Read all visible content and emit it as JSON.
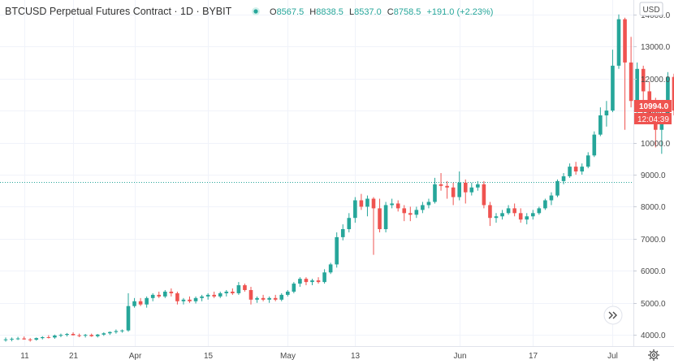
{
  "header": {
    "symbol_title": "BTCUSD Perpetual Futures Contract · 1D · BYBIT",
    "ohlc": [
      {
        "k": "O",
        "v": "8567.5"
      },
      {
        "k": "H",
        "v": "8838.5"
      },
      {
        "k": "L",
        "v": "8537.0"
      },
      {
        "k": "C",
        "v": "8758.5"
      }
    ],
    "change": "+191.0 (+2.23%)"
  },
  "price_axis": {
    "currency": "USD",
    "current_price": "10994.0",
    "countdown": "12:04:39"
  },
  "colors": {
    "up": "#26a69a",
    "down": "#ef5350",
    "grid": "#f0f3fa",
    "axis_text": "#4a4a4a",
    "price_line": "#26a69a"
  },
  "icons": {
    "status": "status-dot-icon",
    "scroll": "double-chevron-right-icon",
    "settings": "gear-icon"
  },
  "chart_data": {
    "type": "candlestick",
    "x_tick_labels": [
      "11",
      "21",
      "Apr",
      "15",
      "May",
      "13",
      "Jun",
      "17",
      "Jul"
    ],
    "y_ticks": [
      4000,
      5000,
      6000,
      7000,
      8000,
      9000,
      10000,
      11000,
      12000,
      13000,
      14000
    ],
    "ylim": [
      3650,
      14450
    ],
    "horizontal_line": 8758.5,
    "last_price": 10994.0,
    "candles": [
      {
        "o": 3850,
        "h": 3920,
        "l": 3790,
        "c": 3860
      },
      {
        "o": 3860,
        "h": 3920,
        "l": 3800,
        "c": 3880
      },
      {
        "o": 3880,
        "h": 3940,
        "l": 3840,
        "c": 3890
      },
      {
        "o": 3890,
        "h": 3950,
        "l": 3850,
        "c": 3860
      },
      {
        "o": 3860,
        "h": 3900,
        "l": 3790,
        "c": 3850
      },
      {
        "o": 3850,
        "h": 3920,
        "l": 3820,
        "c": 3900
      },
      {
        "o": 3900,
        "h": 3960,
        "l": 3860,
        "c": 3930
      },
      {
        "o": 3930,
        "h": 3990,
        "l": 3890,
        "c": 3920
      },
      {
        "o": 3920,
        "h": 4010,
        "l": 3880,
        "c": 3980
      },
      {
        "o": 3980,
        "h": 4040,
        "l": 3930,
        "c": 4000
      },
      {
        "o": 4000,
        "h": 4060,
        "l": 3950,
        "c": 4030
      },
      {
        "o": 4030,
        "h": 4080,
        "l": 3980,
        "c": 3990
      },
      {
        "o": 3990,
        "h": 4040,
        "l": 3930,
        "c": 3980
      },
      {
        "o": 3980,
        "h": 4030,
        "l": 3920,
        "c": 4000
      },
      {
        "o": 4000,
        "h": 4040,
        "l": 3940,
        "c": 3960
      },
      {
        "o": 3960,
        "h": 4030,
        "l": 3920,
        "c": 4010
      },
      {
        "o": 4010,
        "h": 4080,
        "l": 3970,
        "c": 4050
      },
      {
        "o": 4050,
        "h": 4110,
        "l": 4000,
        "c": 4090
      },
      {
        "o": 4090,
        "h": 4170,
        "l": 4040,
        "c": 4120
      },
      {
        "o": 4120,
        "h": 4170,
        "l": 4070,
        "c": 4140
      },
      {
        "o": 4140,
        "h": 5300,
        "l": 4100,
        "c": 4900
      },
      {
        "o": 4900,
        "h": 5150,
        "l": 4850,
        "c": 5050
      },
      {
        "o": 5050,
        "h": 5150,
        "l": 4900,
        "c": 4950
      },
      {
        "o": 4950,
        "h": 5200,
        "l": 4850,
        "c": 5150
      },
      {
        "o": 5150,
        "h": 5300,
        "l": 5050,
        "c": 5250
      },
      {
        "o": 5250,
        "h": 5350,
        "l": 5150,
        "c": 5200
      },
      {
        "o": 5200,
        "h": 5400,
        "l": 5150,
        "c": 5350
      },
      {
        "o": 5350,
        "h": 5450,
        "l": 5200,
        "c": 5300
      },
      {
        "o": 5300,
        "h": 5350,
        "l": 4950,
        "c": 5050
      },
      {
        "o": 5050,
        "h": 5150,
        "l": 4950,
        "c": 5100
      },
      {
        "o": 5100,
        "h": 5200,
        "l": 5000,
        "c": 5050
      },
      {
        "o": 5050,
        "h": 5200,
        "l": 4980,
        "c": 5150
      },
      {
        "o": 5150,
        "h": 5250,
        "l": 5050,
        "c": 5200
      },
      {
        "o": 5200,
        "h": 5300,
        "l": 5100,
        "c": 5250
      },
      {
        "o": 5250,
        "h": 5350,
        "l": 5150,
        "c": 5200
      },
      {
        "o": 5200,
        "h": 5350,
        "l": 5150,
        "c": 5300
      },
      {
        "o": 5300,
        "h": 5400,
        "l": 5200,
        "c": 5350
      },
      {
        "o": 5350,
        "h": 5450,
        "l": 5250,
        "c": 5300
      },
      {
        "o": 5300,
        "h": 5650,
        "l": 5250,
        "c": 5550
      },
      {
        "o": 5550,
        "h": 5600,
        "l": 5350,
        "c": 5400
      },
      {
        "o": 5400,
        "h": 5500,
        "l": 4950,
        "c": 5100
      },
      {
        "o": 5100,
        "h": 5200,
        "l": 5000,
        "c": 5150
      },
      {
        "o": 5150,
        "h": 5250,
        "l": 5050,
        "c": 5100
      },
      {
        "o": 5100,
        "h": 5200,
        "l": 5000,
        "c": 5150
      },
      {
        "o": 5150,
        "h": 5250,
        "l": 5050,
        "c": 5100
      },
      {
        "o": 5100,
        "h": 5300,
        "l": 5050,
        "c": 5250
      },
      {
        "o": 5250,
        "h": 5400,
        "l": 5200,
        "c": 5350
      },
      {
        "o": 5350,
        "h": 5650,
        "l": 5300,
        "c": 5600
      },
      {
        "o": 5600,
        "h": 5800,
        "l": 5500,
        "c": 5750
      },
      {
        "o": 5750,
        "h": 5800,
        "l": 5550,
        "c": 5650
      },
      {
        "o": 5650,
        "h": 5750,
        "l": 5550,
        "c": 5700
      },
      {
        "o": 5700,
        "h": 5800,
        "l": 5600,
        "c": 5650
      },
      {
        "o": 5650,
        "h": 6050,
        "l": 5600,
        "c": 5950
      },
      {
        "o": 5950,
        "h": 6250,
        "l": 5900,
        "c": 6200
      },
      {
        "o": 6200,
        "h": 7200,
        "l": 6100,
        "c": 7050
      },
      {
        "o": 7050,
        "h": 7450,
        "l": 6950,
        "c": 7300
      },
      {
        "o": 7300,
        "h": 7800,
        "l": 7200,
        "c": 7650
      },
      {
        "o": 7650,
        "h": 8300,
        "l": 7500,
        "c": 8200
      },
      {
        "o": 8200,
        "h": 8400,
        "l": 7900,
        "c": 8000
      },
      {
        "o": 8000,
        "h": 8350,
        "l": 7700,
        "c": 8250
      },
      {
        "o": 8250,
        "h": 8300,
        "l": 6500,
        "c": 7950
      },
      {
        "o": 7950,
        "h": 8250,
        "l": 7200,
        "c": 7300
      },
      {
        "o": 7300,
        "h": 8150,
        "l": 7200,
        "c": 8050
      },
      {
        "o": 8050,
        "h": 8250,
        "l": 7950,
        "c": 8100
      },
      {
        "o": 8100,
        "h": 8200,
        "l": 7850,
        "c": 7950
      },
      {
        "o": 7950,
        "h": 8050,
        "l": 7550,
        "c": 7800
      },
      {
        "o": 7800,
        "h": 8000,
        "l": 7550,
        "c": 7750
      },
      {
        "o": 7750,
        "h": 8000,
        "l": 7650,
        "c": 7900
      },
      {
        "o": 7900,
        "h": 8150,
        "l": 7800,
        "c": 8050
      },
      {
        "o": 8050,
        "h": 8250,
        "l": 7950,
        "c": 8150
      },
      {
        "o": 8150,
        "h": 8900,
        "l": 8100,
        "c": 8700
      },
      {
        "o": 8700,
        "h": 9050,
        "l": 8500,
        "c": 8650
      },
      {
        "o": 8650,
        "h": 8800,
        "l": 8250,
        "c": 8600
      },
      {
        "o": 8600,
        "h": 8750,
        "l": 8050,
        "c": 8300
      },
      {
        "o": 8300,
        "h": 9100,
        "l": 8200,
        "c": 8750
      },
      {
        "o": 8750,
        "h": 8850,
        "l": 8100,
        "c": 8450
      },
      {
        "o": 8450,
        "h": 8750,
        "l": 8350,
        "c": 8600
      },
      {
        "o": 8600,
        "h": 8800,
        "l": 8500,
        "c": 8700
      },
      {
        "o": 8700,
        "h": 8800,
        "l": 7950,
        "c": 8050
      },
      {
        "o": 8050,
        "h": 8150,
        "l": 7400,
        "c": 7650
      },
      {
        "o": 7650,
        "h": 7800,
        "l": 7500,
        "c": 7700
      },
      {
        "o": 7700,
        "h": 7900,
        "l": 7600,
        "c": 7800
      },
      {
        "o": 7800,
        "h": 8050,
        "l": 7750,
        "c": 7950
      },
      {
        "o": 7950,
        "h": 8100,
        "l": 7700,
        "c": 7800
      },
      {
        "o": 7800,
        "h": 7950,
        "l": 7500,
        "c": 7600
      },
      {
        "o": 7600,
        "h": 7800,
        "l": 7450,
        "c": 7700
      },
      {
        "o": 7700,
        "h": 7900,
        "l": 7600,
        "c": 7800
      },
      {
        "o": 7800,
        "h": 8000,
        "l": 7750,
        "c": 7950
      },
      {
        "o": 7950,
        "h": 8250,
        "l": 7900,
        "c": 8200
      },
      {
        "o": 8200,
        "h": 8450,
        "l": 8050,
        "c": 8350
      },
      {
        "o": 8350,
        "h": 8850,
        "l": 8300,
        "c": 8800
      },
      {
        "o": 8800,
        "h": 9050,
        "l": 8700,
        "c": 8950
      },
      {
        "o": 8950,
        "h": 9350,
        "l": 8900,
        "c": 9250
      },
      {
        "o": 9250,
        "h": 9400,
        "l": 9000,
        "c": 9100
      },
      {
        "o": 9100,
        "h": 9350,
        "l": 9000,
        "c": 9250
      },
      {
        "o": 9250,
        "h": 9700,
        "l": 9200,
        "c": 9600
      },
      {
        "o": 9600,
        "h": 10350,
        "l": 9550,
        "c": 10250
      },
      {
        "o": 10250,
        "h": 11100,
        "l": 10200,
        "c": 10850
      },
      {
        "o": 10850,
        "h": 11300,
        "l": 10500,
        "c": 11000
      },
      {
        "o": 11000,
        "h": 12900,
        "l": 10950,
        "c": 12400
      },
      {
        "o": 12400,
        "h": 14000,
        "l": 12300,
        "c": 13850
      },
      {
        "o": 13850,
        "h": 13900,
        "l": 10400,
        "c": 12500
      },
      {
        "o": 12500,
        "h": 13300,
        "l": 11100,
        "c": 11300
      },
      {
        "o": 11300,
        "h": 12500,
        "l": 10800,
        "c": 12300
      },
      {
        "o": 12300,
        "h": 12400,
        "l": 10600,
        "c": 11600
      },
      {
        "o": 11600,
        "h": 11900,
        "l": 10800,
        "c": 10800
      },
      {
        "o": 10800,
        "h": 11400,
        "l": 9850,
        "c": 10400
      },
      {
        "o": 10400,
        "h": 10800,
        "l": 9650,
        "c": 10750
      },
      {
        "o": 10750,
        "h": 12200,
        "l": 10650,
        "c": 12050
      },
      {
        "o": 12050,
        "h": 12150,
        "l": 10850,
        "c": 11000
      },
      {
        "o": 11000,
        "h": 11300,
        "l": 10800,
        "c": 10994
      }
    ]
  }
}
